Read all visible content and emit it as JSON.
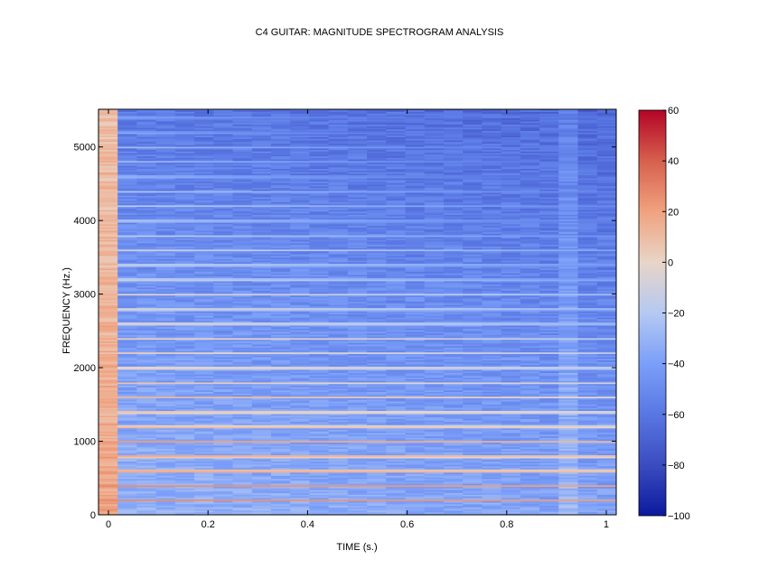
{
  "chart_data": {
    "type": "heatmap",
    "title": "C4 GUITAR: MAGNITUDE SPECTROGRAM ANALYSIS",
    "xlabel": "TIME (s.)",
    "ylabel": "FREQUENCY (Hz.)",
    "xlim": [
      -0.02,
      1.02
    ],
    "ylim": [
      0,
      5512
    ],
    "x_ticks": [
      0,
      0.2,
      0.4,
      0.6,
      0.8,
      1
    ],
    "x_tick_labels": [
      "0",
      "0.2",
      "0.4",
      "0.6",
      "0.8",
      "1"
    ],
    "y_ticks": [
      0,
      1000,
      2000,
      3000,
      4000,
      5000
    ],
    "y_tick_labels": [
      "0",
      "1000",
      "2000",
      "3000",
      "4000",
      "5000"
    ],
    "colorbar": {
      "range": [
        -100,
        60
      ],
      "ticks": [
        60,
        40,
        20,
        0,
        -20,
        -40,
        -60,
        -80,
        -100
      ],
      "tick_labels": [
        "60",
        "40",
        "20",
        "0",
        "−20",
        "−40",
        "−60",
        "−80",
        "−100"
      ],
      "colormap": "coolwarm"
    },
    "fundamental_hz": 200,
    "harmonics_hz": [
      200,
      400,
      600,
      800,
      1000,
      1200,
      1400,
      1600,
      1800,
      2000,
      2200,
      2400,
      2600,
      2800,
      3000,
      3200,
      3400,
      3600,
      3800,
      4000,
      4200,
      4400,
      4600,
      4800,
      5000,
      5200,
      5400
    ],
    "grid": false
  }
}
